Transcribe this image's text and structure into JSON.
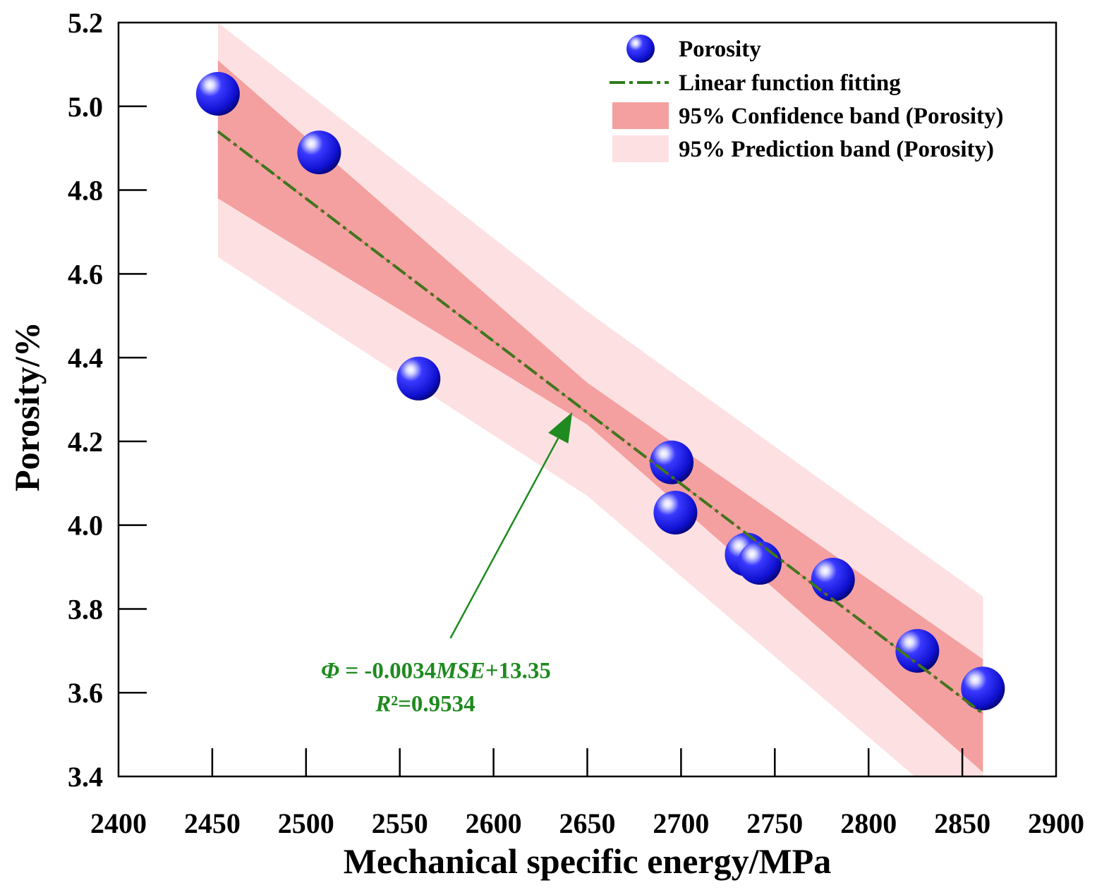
{
  "chart_data": {
    "type": "scatter",
    "title": "",
    "xlabel": "Mechanical specific energy/MPa",
    "ylabel": "Porosity/%",
    "xlim": [
      2400,
      2900
    ],
    "ylim": [
      3.4,
      5.2
    ],
    "xticks": [
      "2400",
      "2450",
      "2500",
      "2550",
      "2600",
      "2650",
      "2700",
      "2750",
      "2800",
      "2850",
      "2900"
    ],
    "yticks": [
      "3.4",
      "3.6",
      "3.8",
      "4.0",
      "4.2",
      "4.4",
      "4.6",
      "4.8",
      "5.0",
      "5.2"
    ],
    "grid": false,
    "legend_position": "top-right",
    "series": [
      {
        "name": "Porosity",
        "type": "scatter",
        "color": "#1414e6",
        "points": [
          {
            "x": 2453,
            "y": 5.03
          },
          {
            "x": 2507,
            "y": 4.89
          },
          {
            "x": 2560,
            "y": 4.35
          },
          {
            "x": 2695,
            "y": 4.15
          },
          {
            "x": 2697,
            "y": 4.03
          },
          {
            "x": 2735,
            "y": 3.93
          },
          {
            "x": 2742,
            "y": 3.91
          },
          {
            "x": 2781,
            "y": 3.87
          },
          {
            "x": 2826,
            "y": 3.7
          },
          {
            "x": 2861,
            "y": 3.61
          }
        ]
      },
      {
        "name": "Linear function fitting",
        "type": "line",
        "color": "#2e7d1a",
        "x": [
          2453,
          2861
        ],
        "y": [
          4.94,
          3.55
        ]
      },
      {
        "name": "95% Confidence band (Porosity)",
        "type": "band",
        "color": "#f4a0a0",
        "x": [
          2453,
          2650,
          2861
        ],
        "upper": [
          5.11,
          4.34,
          3.68
        ],
        "lower": [
          4.78,
          4.24,
          3.41
        ]
      },
      {
        "name": "95% Prediction band (Porosity)",
        "type": "band",
        "color": "#fde1e2",
        "x": [
          2453,
          2650,
          2861
        ],
        "upper": [
          5.2,
          4.51,
          3.83
        ],
        "lower": [
          4.64,
          4.07,
          3.26
        ]
      }
    ],
    "annotation": {
      "equation_phi": "Φ",
      "equation_eq": " = -0.0034",
      "equation_mse": "MSE",
      "equation_tail": "+13.35",
      "r2_r": "R",
      "r2_tail": "²=0.9534",
      "arrow_tip": {
        "x": 2642,
        "y": 4.27
      },
      "arrow_tail": {
        "x": 2577,
        "y": 3.73
      },
      "text_anchor": {
        "x": 2558,
        "y": 3.66
      },
      "color": "#1f8a1f"
    }
  }
}
